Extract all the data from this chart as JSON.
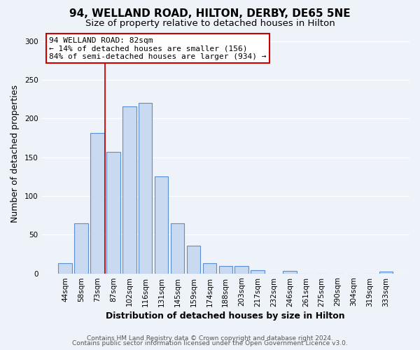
{
  "title": "94, WELLAND ROAD, HILTON, DERBY, DE65 5NE",
  "subtitle": "Size of property relative to detached houses in Hilton",
  "xlabel": "Distribution of detached houses by size in Hilton",
  "ylabel": "Number of detached properties",
  "bar_labels": [
    "44sqm",
    "58sqm",
    "73sqm",
    "87sqm",
    "102sqm",
    "116sqm",
    "131sqm",
    "145sqm",
    "159sqm",
    "174sqm",
    "188sqm",
    "203sqm",
    "217sqm",
    "232sqm",
    "246sqm",
    "261sqm",
    "275sqm",
    "290sqm",
    "304sqm",
    "319sqm",
    "333sqm"
  ],
  "bar_values": [
    13,
    65,
    181,
    157,
    216,
    220,
    125,
    65,
    36,
    13,
    10,
    10,
    4,
    0,
    3,
    0,
    0,
    0,
    0,
    0,
    2
  ],
  "bar_color": "#c9d9ef",
  "bar_edgecolor": "#5b8fd4",
  "vline_color": "#cc0000",
  "annotation_title": "94 WELLAND ROAD: 82sqm",
  "annotation_line1": "← 14% of detached houses are smaller (156)",
  "annotation_line2": "84% of semi-detached houses are larger (934) →",
  "annotation_box_edgecolor": "#cc0000",
  "ylim": [
    0,
    310
  ],
  "yticks": [
    0,
    50,
    100,
    150,
    200,
    250,
    300
  ],
  "footer1": "Contains HM Land Registry data © Crown copyright and database right 2024.",
  "footer2": "Contains public sector information licensed under the Open Government Licence v3.0.",
  "bg_color": "#eef2f9",
  "plot_bg_color": "#eef2f9",
  "grid_color": "#ffffff",
  "title_fontsize": 11,
  "subtitle_fontsize": 9.5,
  "label_fontsize": 9,
  "tick_fontsize": 7.5,
  "annotation_fontsize": 8,
  "footer_fontsize": 6.5
}
